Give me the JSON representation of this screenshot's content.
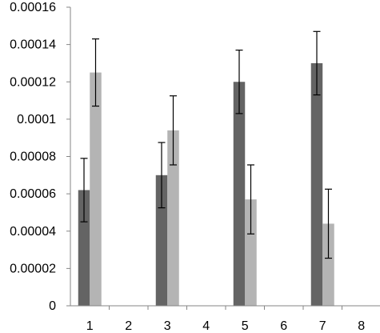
{
  "chart_data": {
    "type": "bar",
    "categories": [
      "1",
      "2",
      "3",
      "4",
      "5",
      "6",
      "7",
      "8"
    ],
    "series": [
      {
        "values": [
          6.2e-05,
          null,
          7e-05,
          null,
          0.00012,
          null,
          0.00013,
          null
        ],
        "errors": [
          1.7e-05,
          null,
          1.75e-05,
          null,
          1.7e-05,
          null,
          1.7e-05,
          null
        ],
        "color": "#646464"
      },
      {
        "values": [
          0.000125,
          null,
          9.4e-05,
          null,
          5.7e-05,
          null,
          4.4e-05,
          null
        ],
        "errors": [
          1.8e-05,
          null,
          1.85e-05,
          null,
          1.85e-05,
          null,
          1.85e-05,
          null
        ],
        "color": "#b4b4b4"
      }
    ],
    "y_ticks": [
      "0",
      "0.00002",
      "0.00004",
      "0.00006",
      "0.00008",
      "0.0001",
      "0.00012",
      "0.00014",
      "0.00016"
    ],
    "ylim": [
      0,
      0.00016
    ],
    "grid": false,
    "legend": "none",
    "title": "",
    "xlabel": "",
    "ylabel": ""
  }
}
